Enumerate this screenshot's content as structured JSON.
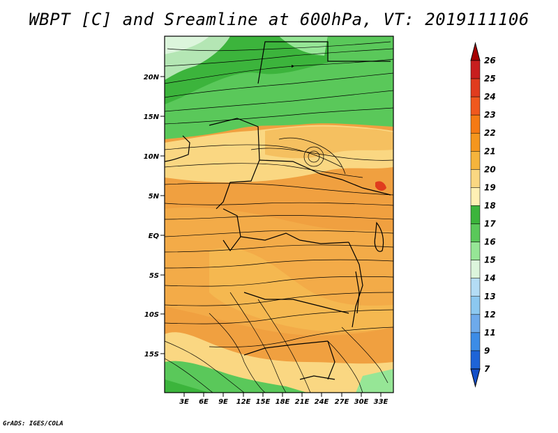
{
  "title": "WBPT [C] and Sreamline at 600hPa, VT: 2019111106",
  "credit": "GrADS: IGES/COLA",
  "lat_labels": [
    "20N",
    "15N",
    "10N",
    "5N",
    "EQ",
    "5S",
    "10S",
    "15S"
  ],
  "lon_labels": [
    "3E",
    "6E",
    "9E",
    "12E",
    "15E",
    "18E",
    "21E",
    "24E",
    "27E",
    "30E",
    "33E"
  ],
  "colorbar": {
    "labels": [
      "26",
      "25",
      "24",
      "23",
      "22",
      "21",
      "20",
      "19",
      "18",
      "17",
      "16",
      "15",
      "14",
      "13",
      "12",
      "11",
      "9",
      "7"
    ],
    "colors": [
      "#a50000",
      "#c81e1e",
      "#e03c1e",
      "#f0581e",
      "#f57a14",
      "#f5961e",
      "#f5b43c",
      "#fad782",
      "#fff0b4",
      "#3cb43c",
      "#5ac85a",
      "#96e696",
      "#dcf5dc",
      "#b4dcf5",
      "#8cc8f0",
      "#6eaaeb",
      "#3c8ce6",
      "#1e64d7",
      "#1450c8"
    ]
  },
  "legend_colors": {
    "orange_region": "#f0a040",
    "light_orange": "#f5c060",
    "yellow_region": "#fad782",
    "green_region": "#5ac85a",
    "dark_green": "#3cb43c",
    "light_green": "#96e696"
  }
}
